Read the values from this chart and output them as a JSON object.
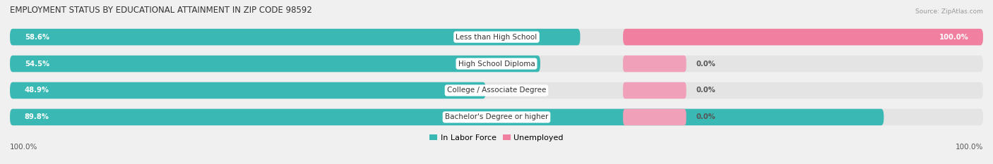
{
  "title": "EMPLOYMENT STATUS BY EDUCATIONAL ATTAINMENT IN ZIP CODE 98592",
  "source": "Source: ZipAtlas.com",
  "categories": [
    "Less than High School",
    "High School Diploma",
    "College / Associate Degree",
    "Bachelor's Degree or higher"
  ],
  "labor_force_pct": [
    58.6,
    54.5,
    48.9,
    89.8
  ],
  "unemployed_pct": [
    100.0,
    0.0,
    0.0,
    0.0
  ],
  "axis_left_label": "100.0%",
  "axis_right_label": "100.0%",
  "color_labor": "#3ab8b3",
  "color_unemployed": "#f07fa0",
  "color_unemployed_small": "#f0a0b8",
  "color_bg_bar": "#e4e4e4",
  "title_fontsize": 8.5,
  "bar_label_fontsize": 7.2,
  "category_fontsize": 7.5,
  "legend_fontsize": 8,
  "axis_label_fontsize": 7.5,
  "source_fontsize": 6.5
}
